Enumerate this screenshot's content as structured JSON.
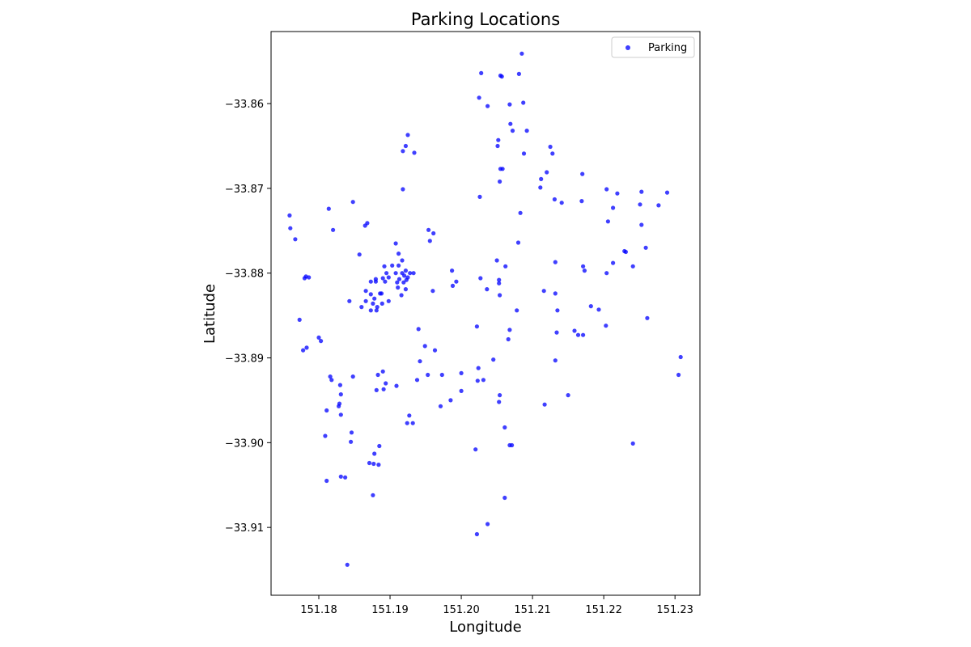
{
  "chart_data": {
    "type": "scatter",
    "title": "Parking Locations",
    "xlabel": "Longitude",
    "ylabel": "Latitude",
    "xlim": [
      151.1733,
      151.2335
    ],
    "ylim": [
      -33.918,
      -33.8515
    ],
    "xticks": [
      {
        "value": 151.18,
        "label": "151.18"
      },
      {
        "value": 151.19,
        "label": "151.19"
      },
      {
        "value": 151.2,
        "label": "151.20"
      },
      {
        "value": 151.21,
        "label": "151.21"
      },
      {
        "value": 151.22,
        "label": "151.22"
      },
      {
        "value": 151.23,
        "label": "151.23"
      }
    ],
    "yticks": [
      {
        "value": -33.86,
        "label": "−33.86"
      },
      {
        "value": -33.87,
        "label": "−33.87"
      },
      {
        "value": -33.88,
        "label": "−33.88"
      },
      {
        "value": -33.89,
        "label": "−33.89"
      },
      {
        "value": -33.9,
        "label": "−33.90"
      },
      {
        "value": -33.91,
        "label": "−33.91"
      }
    ],
    "grid": false,
    "legend": {
      "position": "top-right",
      "entries": [
        "Parking"
      ]
    },
    "series": [
      {
        "name": "Parking",
        "color": "#0000ff",
        "opacity": 0.75,
        "points": [
          [
            151.2085,
            -33.8541
          ],
          [
            151.2028,
            -33.8564
          ],
          [
            151.2055,
            -33.8567
          ],
          [
            151.2057,
            -33.8568
          ],
          [
            151.2081,
            -33.8565
          ],
          [
            151.2025,
            -33.8593
          ],
          [
            151.2037,
            -33.8603
          ],
          [
            151.2068,
            -33.8601
          ],
          [
            151.2087,
            -33.8599
          ],
          [
            151.2069,
            -33.8624
          ],
          [
            151.2072,
            -33.8632
          ],
          [
            151.2092,
            -33.8632
          ],
          [
            151.2052,
            -33.8643
          ],
          [
            151.2051,
            -33.865
          ],
          [
            151.2088,
            -33.8659
          ],
          [
            151.2055,
            -33.8677
          ],
          [
            151.2058,
            -33.8677
          ],
          [
            151.2054,
            -33.8692
          ],
          [
            151.2026,
            -33.871
          ],
          [
            151.2083,
            -33.8729
          ],
          [
            151.208,
            -33.8764
          ],
          [
            151.205,
            -33.8785
          ],
          [
            151.2062,
            -33.8792
          ],
          [
            151.2027,
            -33.8806
          ],
          [
            151.2053,
            -33.8808
          ],
          [
            151.2053,
            -33.8812
          ],
          [
            151.2036,
            -33.8819
          ],
          [
            151.2054,
            -33.8826
          ],
          [
            151.2078,
            -33.8844
          ],
          [
            151.2022,
            -33.8863
          ],
          [
            151.2068,
            -33.8867
          ],
          [
            151.2045,
            -33.8902
          ],
          [
            151.2024,
            -33.8912
          ],
          [
            151.2023,
            -33.8927
          ],
          [
            151.2031,
            -33.8926
          ],
          [
            151.2054,
            -33.8944
          ],
          [
            151.2053,
            -33.8952
          ],
          [
            151.2066,
            -33.8878
          ],
          [
            151.2061,
            -33.8982
          ],
          [
            151.2068,
            -33.9003
          ],
          [
            151.2071,
            -33.9003
          ],
          [
            151.202,
            -33.9008
          ],
          [
            151.2061,
            -33.9065
          ],
          [
            151.2037,
            -33.9096
          ],
          [
            151.2022,
            -33.9108
          ],
          [
            151.2125,
            -33.8651
          ],
          [
            151.2128,
            -33.8659
          ],
          [
            151.212,
            -33.8681
          ],
          [
            151.2112,
            -33.8689
          ],
          [
            151.2111,
            -33.8699
          ],
          [
            151.2131,
            -33.8713
          ],
          [
            151.2141,
            -33.8717
          ],
          [
            151.217,
            -33.8683
          ],
          [
            151.2169,
            -33.8715
          ],
          [
            151.2204,
            -33.8701
          ],
          [
            151.2219,
            -33.8706
          ],
          [
            151.2213,
            -33.8723
          ],
          [
            151.2206,
            -33.8739
          ],
          [
            151.2253,
            -33.8704
          ],
          [
            151.2251,
            -33.8719
          ],
          [
            151.2277,
            -33.872
          ],
          [
            151.2289,
            -33.8705
          ],
          [
            151.2253,
            -33.8743
          ],
          [
            151.2259,
            -33.877
          ],
          [
            151.2229,
            -33.8774
          ],
          [
            151.2231,
            -33.8775
          ],
          [
            151.2213,
            -33.8788
          ],
          [
            151.2241,
            -33.8792
          ],
          [
            151.2204,
            -33.88
          ],
          [
            151.2132,
            -33.8787
          ],
          [
            151.2171,
            -33.8792
          ],
          [
            151.2173,
            -33.8797
          ],
          [
            151.2116,
            -33.8821
          ],
          [
            151.2132,
            -33.8824
          ],
          [
            151.2135,
            -33.8844
          ],
          [
            151.2182,
            -33.8839
          ],
          [
            151.2193,
            -33.8843
          ],
          [
            151.2203,
            -33.8862
          ],
          [
            151.2159,
            -33.8868
          ],
          [
            151.2164,
            -33.8873
          ],
          [
            151.2171,
            -33.8873
          ],
          [
            151.2134,
            -33.887
          ],
          [
            151.2261,
            -33.8853
          ],
          [
            151.2132,
            -33.8903
          ],
          [
            151.2308,
            -33.8899
          ],
          [
            151.2305,
            -33.892
          ],
          [
            151.2117,
            -33.8955
          ],
          [
            151.215,
            -33.8944
          ],
          [
            151.2241,
            -33.9001
          ],
          [
            151.1925,
            -33.8637
          ],
          [
            151.1922,
            -33.865
          ],
          [
            151.1918,
            -33.8656
          ],
          [
            151.1934,
            -33.8658
          ],
          [
            151.1918,
            -33.8701
          ],
          [
            151.1848,
            -33.8716
          ],
          [
            151.1868,
            -33.8741
          ],
          [
            151.1865,
            -33.8744
          ],
          [
            151.1814,
            -33.8724
          ],
          [
            151.182,
            -33.8749
          ],
          [
            151.1759,
            -33.8732
          ],
          [
            151.176,
            -33.8747
          ],
          [
            151.1767,
            -33.876
          ],
          [
            151.1954,
            -33.8749
          ],
          [
            151.1961,
            -33.8753
          ],
          [
            151.1956,
            -33.8762
          ],
          [
            151.1857,
            -33.8778
          ],
          [
            151.1908,
            -33.8765
          ],
          [
            151.1912,
            -33.8777
          ],
          [
            151.1917,
            -33.8785
          ],
          [
            151.1903,
            -33.8791
          ],
          [
            151.1912,
            -33.8791
          ],
          [
            151.1892,
            -33.8792
          ],
          [
            151.1895,
            -33.88
          ],
          [
            151.1908,
            -33.88
          ],
          [
            151.1917,
            -33.88
          ],
          [
            151.1922,
            -33.8797
          ],
          [
            151.1928,
            -33.88
          ],
          [
            151.1933,
            -33.88
          ],
          [
            151.192,
            -33.8803
          ],
          [
            151.1925,
            -33.8805
          ],
          [
            151.1913,
            -33.8807
          ],
          [
            151.1923,
            -33.8808
          ],
          [
            151.1898,
            -33.8805
          ],
          [
            151.189,
            -33.8806
          ],
          [
            151.1893,
            -33.881
          ],
          [
            151.188,
            -33.881
          ],
          [
            151.1873,
            -33.881
          ],
          [
            151.191,
            -33.8811
          ],
          [
            151.1919,
            -33.8811
          ],
          [
            151.1911,
            -33.8817
          ],
          [
            151.1922,
            -33.8819
          ],
          [
            151.1916,
            -33.8826
          ],
          [
            151.1866,
            -33.8821
          ],
          [
            151.1873,
            -33.8825
          ],
          [
            151.1888,
            -33.8824
          ],
          [
            151.1886,
            -33.8824
          ],
          [
            151.1878,
            -33.883
          ],
          [
            151.1866,
            -33.8833
          ],
          [
            151.1898,
            -33.8833
          ],
          [
            151.1876,
            -33.8836
          ],
          [
            151.1889,
            -33.8836
          ],
          [
            151.1882,
            -33.884
          ],
          [
            151.186,
            -33.884
          ],
          [
            151.1873,
            -33.8844
          ],
          [
            151.1881,
            -33.8844
          ],
          [
            151.1843,
            -33.8833
          ],
          [
            151.188,
            -33.8807
          ],
          [
            151.196,
            -33.8821
          ],
          [
            151.1993,
            -33.881
          ],
          [
            151.1987,
            -33.8797
          ],
          [
            151.1988,
            -33.8815
          ],
          [
            151.178,
            -33.8806
          ],
          [
            151.1782,
            -33.8804
          ],
          [
            151.1786,
            -33.8805
          ],
          [
            151.1773,
            -33.8855
          ],
          [
            151.18,
            -33.8876
          ],
          [
            151.1803,
            -33.888
          ],
          [
            151.1783,
            -33.8888
          ],
          [
            151.1778,
            -33.8891
          ],
          [
            151.194,
            -33.8866
          ],
          [
            151.1949,
            -33.8886
          ],
          [
            151.1963,
            -33.8891
          ],
          [
            151.1942,
            -33.8904
          ],
          [
            151.1953,
            -33.892
          ],
          [
            151.1973,
            -33.892
          ],
          [
            151.2,
            -33.8918
          ],
          [
            151.1938,
            -33.8926
          ],
          [
            151.1816,
            -33.8922
          ],
          [
            151.1818,
            -33.8926
          ],
          [
            151.183,
            -33.8932
          ],
          [
            151.1848,
            -33.8922
          ],
          [
            151.1831,
            -33.8943
          ],
          [
            151.1829,
            -33.8954
          ],
          [
            151.1828,
            -33.8957
          ],
          [
            151.1811,
            -33.8962
          ],
          [
            151.1831,
            -33.8967
          ],
          [
            151.189,
            -33.8916
          ],
          [
            151.1883,
            -33.892
          ],
          [
            151.1894,
            -33.893
          ],
          [
            151.1909,
            -33.8933
          ],
          [
            151.1891,
            -33.8937
          ],
          [
            151.1881,
            -33.8938
          ],
          [
            151.2,
            -33.8939
          ],
          [
            151.1985,
            -33.895
          ],
          [
            151.1971,
            -33.8957
          ],
          [
            151.1927,
            -33.8968
          ],
          [
            151.1924,
            -33.8977
          ],
          [
            151.1932,
            -33.8977
          ],
          [
            151.1846,
            -33.8988
          ],
          [
            151.1845,
            -33.8999
          ],
          [
            151.1809,
            -33.8992
          ],
          [
            151.1885,
            -33.9004
          ],
          [
            151.1878,
            -33.9013
          ],
          [
            151.1871,
            -33.9024
          ],
          [
            151.1877,
            -33.9025
          ],
          [
            151.1884,
            -33.9026
          ],
          [
            151.1831,
            -33.904
          ],
          [
            151.1837,
            -33.9041
          ],
          [
            151.1811,
            -33.9045
          ],
          [
            151.1876,
            -33.9062
          ],
          [
            151.184,
            -33.9144
          ]
        ]
      }
    ]
  }
}
